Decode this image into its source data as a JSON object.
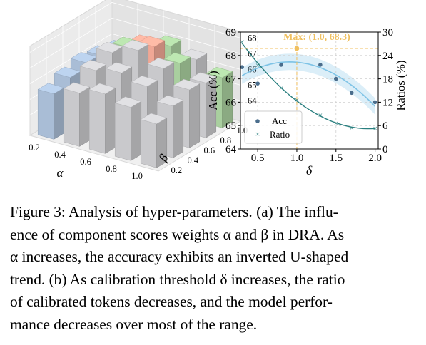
{
  "figure": {
    "panel_a": {
      "chart_data": {
        "type": "bar3d",
        "x_ticks": [
          "0.2",
          "0.4",
          "0.6",
          "0.8",
          "1.0"
        ],
        "y_ticks": [
          "0.2",
          "0.4",
          "0.6",
          "0.8",
          "1.0"
        ],
        "z_ticks": [
          "64",
          "65",
          "66",
          "67",
          "68"
        ],
        "xlabel": "α",
        "ylabel": "β",
        "zlim": [
          64,
          68
        ],
        "x_values": [
          0.2,
          0.4,
          0.6,
          0.8,
          1.0
        ],
        "y_values": [
          0.2,
          0.4,
          0.6,
          0.8,
          1.0
        ],
        "heights": [
          [
            65.6,
            66.1,
            66.5,
            66.1,
            65.5
          ],
          [
            66.0,
            66.9,
            67.2,
            66.8,
            66.0
          ],
          [
            66.3,
            67.4,
            68.0,
            67.3,
            66.4
          ],
          [
            66.1,
            67.1,
            67.6,
            67.0,
            66.2
          ],
          [
            65.8,
            66.6,
            67.0,
            66.6,
            65.9
          ]
        ],
        "colors": {
          "blue": "#a9bdd6",
          "grey": "#c9c9cc",
          "green": "#a9cf9f",
          "salmon": "#f0a795"
        }
      }
    },
    "panel_b": {
      "chart_data": {
        "type": "scatter",
        "xlabel": "δ",
        "ylabel_left": "Acc (%)",
        "ylabel_right": "Ratios (%)",
        "x_ticks": [
          "0.5",
          "1.0",
          "1.5",
          "2.0"
        ],
        "y_left_ticks": [
          "64",
          "65",
          "66",
          "67",
          "68",
          "69"
        ],
        "y_right_ticks": [
          "0",
          "6",
          "12",
          "18",
          "24",
          "30"
        ],
        "xlim": [
          0.28,
          2.04
        ],
        "ylim_left": [
          64,
          69
        ],
        "ylim_right": [
          0,
          30
        ],
        "series": [
          {
            "name": "Acc",
            "x": [
              0.3,
              0.5,
              0.8,
              1.0,
              1.3,
              1.5,
              1.7,
              2.0
            ],
            "y": [
              67.5,
              66.8,
              67.6,
              68.3,
              67.6,
              67.0,
              66.4,
              66.0
            ],
            "color": "#4a6d8c",
            "fit_color": "#7ec3e6"
          },
          {
            "name": "Ratio",
            "x": [
              0.3,
              0.5,
              0.8,
              1.0,
              1.3,
              1.5,
              1.7,
              2.0
            ],
            "y": [
              27.5,
              21.5,
              15.6,
              12.6,
              8.7,
              6.6,
              5.4,
              5.3
            ],
            "color": "#2a7f7f"
          }
        ],
        "annotation": {
          "label": "Max: (1.0, 68.3)",
          "x": 1.0,
          "y": 68.3,
          "color": "#f0c060"
        },
        "legend_position": "lower-left"
      }
    }
  },
  "caption": {
    "lines": [
      "Figure 3: Analysis of hyper-parameters. (a) The influ-",
      "ence of component scores weights α and β in DRA. As",
      "α increases, the accuracy exhibits an inverted U-shaped",
      "trend. (b) As calibration threshold δ increases, the ratio",
      "of calibrated tokens decreases, and the model perfor-",
      "mance decreases over most of the range."
    ]
  }
}
